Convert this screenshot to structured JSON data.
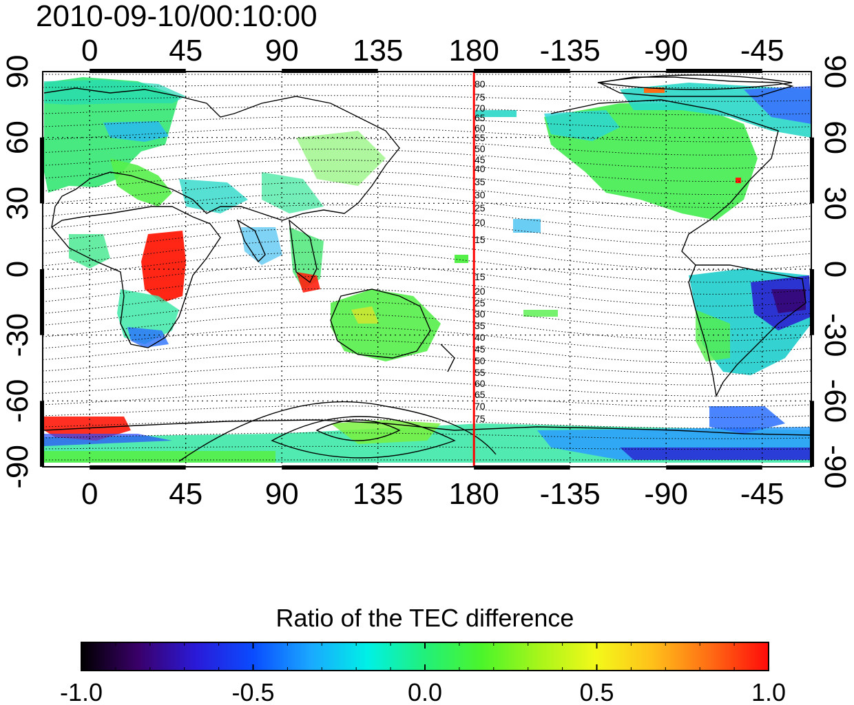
{
  "timestamp": "2010-09-10/00:10:00",
  "map": {
    "lon_ticks": [
      "0",
      "45",
      "90",
      "135",
      "180",
      "-135",
      "-90",
      "-45"
    ],
    "lat_ticks_left": [
      "90",
      "60",
      "30",
      "0",
      "-30",
      "-60",
      "-90"
    ],
    "lat_ticks_right": [
      "90",
      "60",
      "30",
      "0",
      "-30",
      "-60",
      "-90"
    ],
    "red_meridian_lon": 180,
    "contour_labels_north": [
      "80",
      "75",
      "70",
      "65",
      "60",
      "55",
      "50",
      "45",
      "40",
      "35",
      "30",
      "25",
      "20",
      "15"
    ],
    "contour_labels_south": [
      "15",
      "20",
      "25",
      "30",
      "35",
      "40",
      "45",
      "50",
      "55",
      "60",
      "65",
      "70",
      "75"
    ]
  },
  "colorbar": {
    "title": "Ratio of the TEC difference",
    "tick_labels": [
      "-1.0",
      "-0.5",
      "0.0",
      "0.5",
      "1.0"
    ],
    "range": [
      -1.0,
      1.0
    ],
    "colors": [
      "#000000",
      "#3a006a",
      "#2a1ad8",
      "#0a4cff",
      "#1aa8ff",
      "#00f0e6",
      "#22f07a",
      "#4cf52a",
      "#a8f51a",
      "#f4f81a",
      "#ffbe1a",
      "#ff6a14",
      "#ff0a0a"
    ]
  },
  "colors": {
    "red_line": "#ff0000",
    "land_outline": "#000000",
    "grid": "#000000"
  }
}
